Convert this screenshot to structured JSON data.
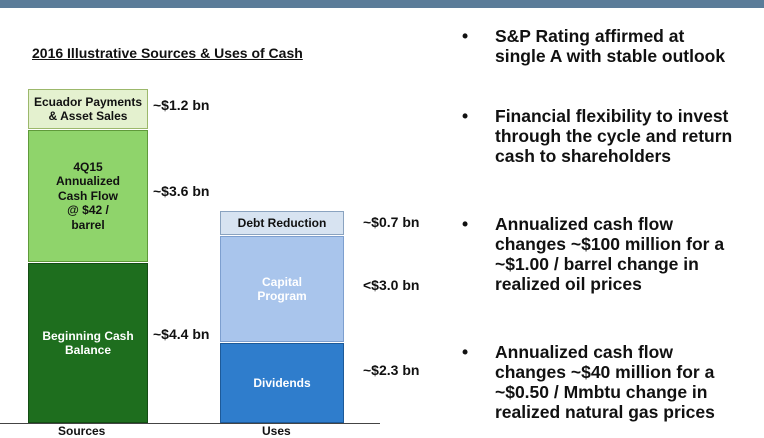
{
  "chart_data": {
    "type": "bar",
    "title": "2016 Illustrative Sources & Uses of Cash",
    "categories": [
      "Sources",
      "Uses"
    ],
    "sources": [
      {
        "name": "Beginning Cash Balance",
        "lines": [
          "Beginning Cash",
          "Balance"
        ],
        "value": 4.4,
        "label": "~$4.4 bn"
      },
      {
        "name": "4Q15 Annualized Cash Flow @ $42 / barrel",
        "lines": [
          "4Q15",
          "Annualized",
          "Cash Flow",
          "@ $42 /",
          "barrel"
        ],
        "value": 3.6,
        "label": "~$3.6 bn"
      },
      {
        "name": "Ecuador Payments & Asset Sales",
        "lines": [
          "Ecuador Payments",
          "& Asset Sales"
        ],
        "value": 1.2,
        "label": "~$1.2 bn"
      }
    ],
    "uses": [
      {
        "name": "Dividends",
        "lines": [
          "Dividends"
        ],
        "value": 2.3,
        "label": "~$2.3 bn"
      },
      {
        "name": "Capital Program",
        "lines": [
          "Capital",
          "Program"
        ],
        "value": 3.0,
        "label": "<$3.0 bn"
      },
      {
        "name": "Debt Reduction",
        "lines": [
          "Debt Reduction"
        ],
        "value": 0.7,
        "label": "~$0.7 bn"
      }
    ],
    "colors": {
      "beginning_cash": "#1e6e1e",
      "cash_flow": "#8fd46b",
      "ecuador": "#e4f1cf",
      "dividends": "#2f7dcc",
      "capital": "#a9c5ec",
      "debt": "#d7e3f1"
    }
  },
  "bullets": [
    {
      "marker": "•",
      "lines": [
        "S&P Rating affirmed at",
        "single A with stable outlook"
      ]
    },
    {
      "marker": "•",
      "lines": [
        "Financial flexibility to invest",
        "through the cycle and return",
        "cash to shareholders"
      ]
    },
    {
      "marker": "•",
      "lines": [
        "Annualized cash flow",
        "changes ~$100 million for a",
        "~$1.00 / barrel change in",
        "realized oil prices"
      ]
    },
    {
      "marker": "•",
      "lines": [
        "Annualized cash flow",
        "changes ~$40 million for a",
        "~$0.50 / Mmbtu change in",
        "realized natural gas prices"
      ]
    }
  ]
}
